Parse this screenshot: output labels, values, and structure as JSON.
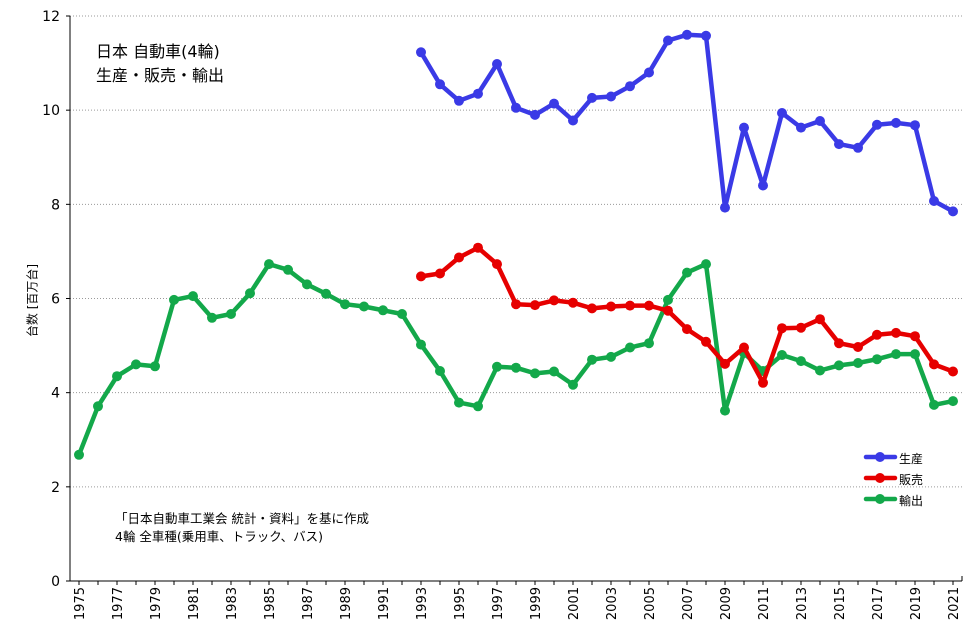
{
  "chart_data": {
    "type": "line",
    "title": [
      "日本 自動車(4輪)",
      "生産・販売・輸出"
    ],
    "notes": [
      "「日本自動車工業会 統計・資料」を基に作成",
      "4輪 全車種(乗用車、トラック、バス)"
    ],
    "ylabel": "台数 [百万台]",
    "xlabel": "",
    "ylim": [
      0,
      12
    ],
    "yticks": [
      0,
      2,
      4,
      6,
      8,
      10,
      12
    ],
    "xlim": [
      1975,
      2021
    ],
    "xtick_labels": [
      "1975",
      "1977",
      "1979",
      "1981",
      "1983",
      "1985",
      "1987",
      "1989",
      "1991",
      "1993",
      "1995",
      "1997",
      "1999",
      "2001",
      "2003",
      "2005",
      "2007",
      "2009",
      "2011",
      "2013",
      "2015",
      "2017",
      "2019",
      "2021"
    ],
    "grid": "horizontal dotted",
    "legend_position": "right, lower-middle",
    "series": [
      {
        "name": "生産",
        "color": "#3a3ae6",
        "x": [
          1993,
          1994,
          1995,
          1996,
          1997,
          1998,
          1999,
          2000,
          2001,
          2002,
          2003,
          2004,
          2005,
          2006,
          2007,
          2008,
          2009,
          2010,
          2011,
          2012,
          2013,
          2014,
          2015,
          2016,
          2017,
          2018,
          2019,
          2020,
          2021
        ],
        "values": [
          11.23,
          10.55,
          10.2,
          10.35,
          10.98,
          10.05,
          9.9,
          10.14,
          9.78,
          10.26,
          10.29,
          10.51,
          10.8,
          11.48,
          11.6,
          11.58,
          7.93,
          9.63,
          8.4,
          9.94,
          9.63,
          9.77,
          9.28,
          9.2,
          9.69,
          9.73,
          9.68,
          8.07,
          7.85
        ]
      },
      {
        "name": "販売",
        "color": "#e60000",
        "x": [
          1993,
          1994,
          1995,
          1996,
          1997,
          1998,
          1999,
          2000,
          2001,
          2002,
          2003,
          2004,
          2005,
          2006,
          2007,
          2008,
          2009,
          2010,
          2011,
          2012,
          2013,
          2014,
          2015,
          2016,
          2017,
          2018,
          2019,
          2020,
          2021
        ],
        "values": [
          6.47,
          6.53,
          6.87,
          7.08,
          6.73,
          5.88,
          5.86,
          5.96,
          5.91,
          5.79,
          5.83,
          5.85,
          5.85,
          5.74,
          5.35,
          5.08,
          4.61,
          4.96,
          4.21,
          5.37,
          5.38,
          5.56,
          5.05,
          4.97,
          5.23,
          5.27,
          5.2,
          4.6,
          4.45
        ]
      },
      {
        "name": "輸出",
        "color": "#13a84a",
        "x": [
          1975,
          1976,
          1977,
          1978,
          1979,
          1980,
          1981,
          1982,
          1983,
          1984,
          1985,
          1986,
          1987,
          1988,
          1989,
          1990,
          1991,
          1992,
          1993,
          1994,
          1995,
          1996,
          1997,
          1998,
          1999,
          2000,
          2001,
          2002,
          2003,
          2004,
          2005,
          2006,
          2007,
          2008,
          2009,
          2010,
          2011,
          2012,
          2013,
          2014,
          2015,
          2016,
          2017,
          2018,
          2019,
          2020,
          2021
        ],
        "values": [
          2.68,
          3.71,
          4.35,
          4.6,
          4.56,
          5.97,
          6.05,
          5.59,
          5.67,
          6.11,
          6.73,
          6.61,
          6.3,
          6.1,
          5.88,
          5.83,
          5.75,
          5.67,
          5.02,
          4.46,
          3.79,
          3.71,
          4.55,
          4.53,
          4.41,
          4.45,
          4.17,
          4.7,
          4.76,
          4.96,
          5.05,
          5.97,
          6.55,
          6.73,
          3.62,
          4.84,
          4.46,
          4.8,
          4.67,
          4.47,
          4.58,
          4.63,
          4.71,
          4.82,
          4.82,
          3.74,
          3.82
        ]
      }
    ]
  }
}
